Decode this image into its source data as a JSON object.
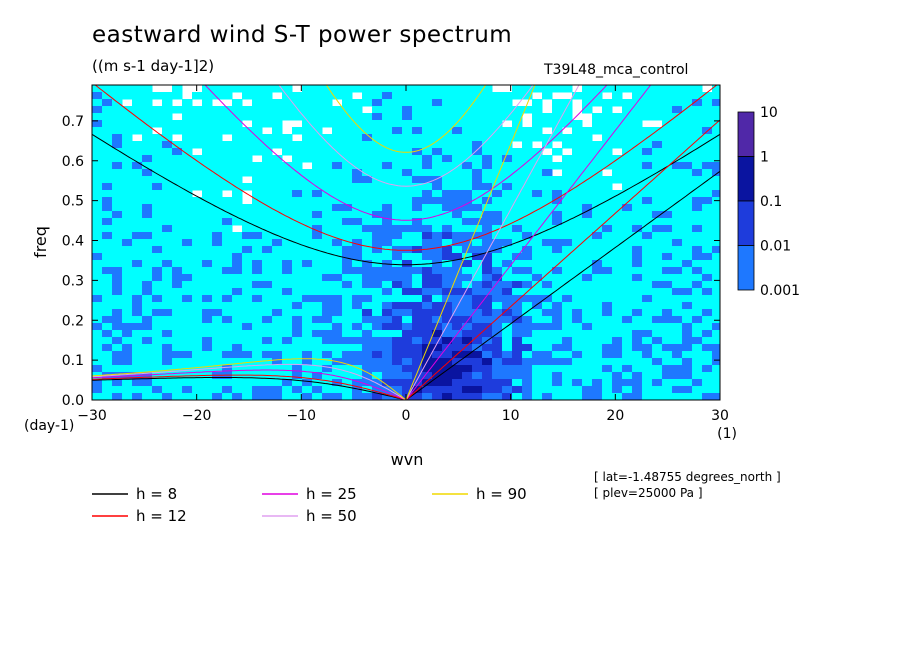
{
  "title": "eastward wind S-T power spectrum",
  "units": "((m s-1 day-1]2)",
  "run_label": "T39L48_mca_control",
  "info_lines": [
    "[ lat=-1.48755 degrees_north ]",
    "[ plev=25000 Pa ]"
  ],
  "chart_data": {
    "type": "heatmap",
    "xlabel": "wvn",
    "ylabel": "freq",
    "x_unit_label": "(1)",
    "y_unit_label": "(day-1)",
    "xlim": [
      -30,
      30
    ],
    "ylim": [
      0,
      0.79
    ],
    "x_ticks": [
      -30,
      -20,
      -10,
      0,
      10,
      20,
      30
    ],
    "y_ticks": [
      0.0,
      0.1,
      0.2,
      0.3,
      0.4,
      0.5,
      0.6,
      0.7
    ],
    "color_scale": {
      "labels": [
        "10",
        "1",
        "0.1",
        "0.01",
        "0.001"
      ],
      "levels": [
        0.001,
        0.01,
        0.1,
        1,
        10
      ],
      "colors": [
        "#00ffff",
        "#1e78ff",
        "#1e3cdc",
        "#0a14a0",
        "#5028a8"
      ],
      "scale": "log"
    },
    "dispersion_curves": [
      {
        "name": "h =  8",
        "h": 8,
        "color": "#000000"
      },
      {
        "name": "h = 12",
        "h": 12,
        "color": "#ff0000"
      },
      {
        "name": "h = 25",
        "h": 25,
        "color": "#e000e0"
      },
      {
        "name": "h = 50",
        "h": 50,
        "color": "#e0a0f0"
      },
      {
        "name": "h = 90",
        "h": 90,
        "color": "#f0d800"
      }
    ]
  }
}
